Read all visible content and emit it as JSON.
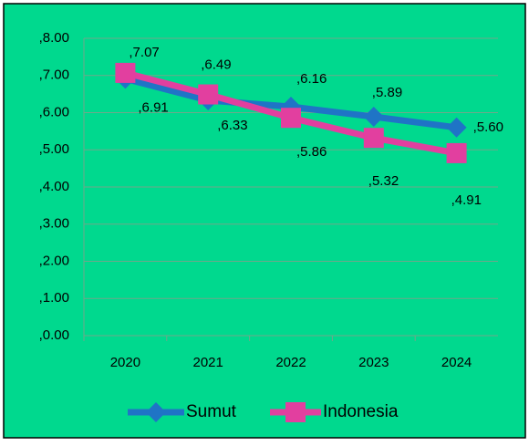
{
  "chart_data": {
    "type": "line",
    "categories": [
      "2020",
      "2021",
      "2022",
      "2023",
      "2024"
    ],
    "series": [
      {
        "name": "Sumut",
        "color": "#1f74c6",
        "values": [
          6.91,
          6.33,
          6.16,
          5.89,
          5.6
        ],
        "value_labels": [
          ",6.91",
          ",6.33",
          ",6.16",
          ",5.89",
          ",5.60"
        ]
      },
      {
        "name": "Indonesia",
        "color": "#e23f9f",
        "values": [
          7.07,
          6.49,
          5.86,
          5.32,
          4.91
        ],
        "value_labels": [
          ",7.07",
          ",6.49",
          ",5.86",
          ",5.32",
          ",4.91"
        ]
      }
    ],
    "ylim": [
      0,
      8
    ],
    "yticks": [
      {
        "value": 0,
        "label": ",0.00"
      },
      {
        "value": 1,
        "label": ",1.00"
      },
      {
        "value": 2,
        "label": ",2.00"
      },
      {
        "value": 3,
        "label": ",3.00"
      },
      {
        "value": 4,
        "label": ",4.00"
      },
      {
        "value": 5,
        "label": ",5.00"
      },
      {
        "value": 6,
        "label": ",6.00"
      },
      {
        "value": 7,
        "label": ",7.00"
      },
      {
        "value": 8,
        "label": ",8.00"
      }
    ],
    "grid": true,
    "legend": "bottom",
    "background": "#00d98e"
  }
}
